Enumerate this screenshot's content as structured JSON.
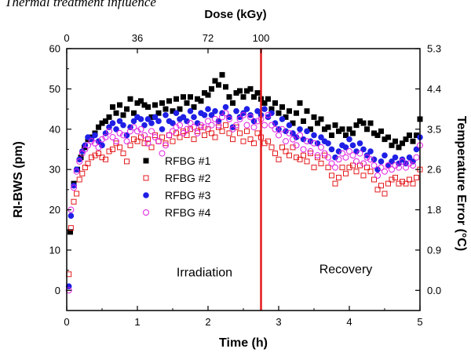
{
  "caption": "Thermal treatment influence",
  "chart_data": {
    "type": "scatter",
    "xlabel": "Time (h)",
    "ylabel": "RI-BWS (pm)",
    "top_xlabel": "Dose (kGy)",
    "right_ylabel": "Temperature Error (°C)",
    "xlim": [
      0,
      5
    ],
    "ylim": [
      -5,
      60
    ],
    "x_ticks": [
      "0",
      "1",
      "2",
      "3",
      "4",
      "5"
    ],
    "y_ticks": [
      "0",
      "10",
      "20",
      "30",
      "40",
      "50",
      "60"
    ],
    "top_ticks": [
      {
        "label": "0",
        "x": 0
      },
      {
        "label": "36",
        "x": 1
      },
      {
        "label": "72",
        "x": 2
      },
      {
        "label": "100",
        "x": 2.75
      }
    ],
    "right_ticks": [
      {
        "label": "0.0",
        "y": 0
      },
      {
        "label": "0.9",
        "y": 10
      },
      {
        "label": "1.8",
        "y": 20
      },
      {
        "label": "2.6",
        "y": 30
      },
      {
        "label": "3.5",
        "y": 40
      },
      {
        "label": "4.4",
        "y": 50
      },
      {
        "label": "5.3",
        "y": 60
      }
    ],
    "vline_x": 2.75,
    "vline_color": "#e31a1c",
    "annotations": [
      {
        "text": "Irradiation",
        "x": 1.95,
        "y": 3.5
      },
      {
        "text": "Recovery",
        "x": 3.95,
        "y": 4.2
      }
    ],
    "legend_position": "center-left",
    "series": [
      {
        "name": "RFBG #1",
        "marker": "square-filled",
        "color": "#000000",
        "x": [
          0.05,
          0.1,
          0.15,
          0.2,
          0.25,
          0.3,
          0.35,
          0.4,
          0.45,
          0.5,
          0.55,
          0.6,
          0.65,
          0.7,
          0.75,
          0.8,
          0.85,
          0.9,
          0.95,
          1.0,
          1.05,
          1.1,
          1.15,
          1.2,
          1.25,
          1.3,
          1.35,
          1.4,
          1.45,
          1.5,
          1.55,
          1.6,
          1.65,
          1.7,
          1.75,
          1.8,
          1.85,
          1.9,
          1.95,
          2.0,
          2.05,
          2.1,
          2.15,
          2.2,
          2.25,
          2.3,
          2.35,
          2.4,
          2.45,
          2.5,
          2.55,
          2.6,
          2.65,
          2.7,
          2.75,
          2.8,
          2.85,
          2.9,
          2.95,
          3.0,
          3.05,
          3.1,
          3.15,
          3.2,
          3.25,
          3.3,
          3.35,
          3.4,
          3.45,
          3.5,
          3.55,
          3.6,
          3.65,
          3.7,
          3.75,
          3.8,
          3.85,
          3.9,
          3.95,
          4.0,
          4.05,
          4.1,
          4.15,
          4.2,
          4.25,
          4.3,
          4.35,
          4.4,
          4.45,
          4.5,
          4.55,
          4.6,
          4.65,
          4.7,
          4.75,
          4.8,
          4.85,
          4.9,
          4.95,
          5.0
        ],
        "y": [
          14.5,
          26.5,
          30.0,
          33.0,
          35.5,
          37.5,
          38.0,
          39.0,
          40.5,
          41.5,
          42.0,
          43.0,
          45.5,
          44.0,
          46.0,
          43.5,
          45.0,
          47.5,
          44.0,
          46.5,
          47.0,
          46.0,
          45.5,
          43.0,
          46.0,
          44.0,
          46.5,
          45.0,
          47.0,
          44.5,
          47.5,
          45.0,
          48.0,
          46.5,
          48.0,
          45.5,
          47.5,
          47.0,
          49.0,
          48.5,
          50.0,
          52.0,
          51.0,
          53.5,
          50.5,
          48.0,
          46.5,
          49.0,
          49.5,
          48.0,
          49.5,
          50.0,
          48.0,
          49.0,
          47.5,
          46.5,
          47.5,
          45.0,
          46.5,
          44.0,
          45.5,
          43.0,
          44.5,
          41.5,
          44.0,
          46.5,
          42.0,
          44.5,
          40.0,
          43.0,
          41.5,
          42.5,
          40.0,
          40.5,
          38.5,
          41.0,
          39.5,
          40.0,
          38.5,
          40.0,
          39.0,
          41.0,
          42.0,
          41.5,
          40.0,
          41.5,
          39.0,
          38.5,
          39.5,
          37.5,
          38.0,
          36.0,
          37.0,
          35.5,
          36.5,
          37.5,
          38.5,
          37.0,
          38.5,
          42.5
        ]
      },
      {
        "name": "RFBG #2",
        "marker": "square-open",
        "color": "#e31a1c",
        "x": [
          0.03,
          0.06,
          0.1,
          0.14,
          0.18,
          0.22,
          0.26,
          0.3,
          0.35,
          0.4,
          0.45,
          0.5,
          0.55,
          0.6,
          0.65,
          0.7,
          0.75,
          0.8,
          0.85,
          0.9,
          0.95,
          1.0,
          1.05,
          1.1,
          1.15,
          1.2,
          1.25,
          1.3,
          1.35,
          1.4,
          1.45,
          1.5,
          1.55,
          1.6,
          1.65,
          1.7,
          1.75,
          1.8,
          1.85,
          1.9,
          1.95,
          2.0,
          2.05,
          2.1,
          2.15,
          2.2,
          2.25,
          2.3,
          2.35,
          2.4,
          2.45,
          2.5,
          2.55,
          2.6,
          2.65,
          2.7,
          2.75,
          2.8,
          2.85,
          2.9,
          2.95,
          3.0,
          3.05,
          3.1,
          3.15,
          3.2,
          3.25,
          3.3,
          3.35,
          3.4,
          3.45,
          3.5,
          3.55,
          3.6,
          3.65,
          3.7,
          3.75,
          3.8,
          3.85,
          3.9,
          3.95,
          4.0,
          4.05,
          4.1,
          4.15,
          4.2,
          4.25,
          4.3,
          4.35,
          4.4,
          4.45,
          4.5,
          4.55,
          4.6,
          4.65,
          4.7,
          4.75,
          4.8,
          4.85,
          4.9,
          4.95,
          5.0
        ],
        "y": [
          4.0,
          15.5,
          22.0,
          24.0,
          27.5,
          29.0,
          30.5,
          31.5,
          33.0,
          33.5,
          34.0,
          33.0,
          32.5,
          34.5,
          35.0,
          36.5,
          35.5,
          34.0,
          32.0,
          36.0,
          37.5,
          37.0,
          38.0,
          36.5,
          37.5,
          35.5,
          38.5,
          37.0,
          38.0,
          36.5,
          38.5,
          37.0,
          39.0,
          38.0,
          39.5,
          38.5,
          40.0,
          37.5,
          39.5,
          40.5,
          38.5,
          40.0,
          39.0,
          38.0,
          40.5,
          39.5,
          41.0,
          39.0,
          37.5,
          40.5,
          39.0,
          37.0,
          39.5,
          37.5,
          36.5,
          39.0,
          38.0,
          36.5,
          37.0,
          35.5,
          34.0,
          32.5,
          35.5,
          34.5,
          33.5,
          35.5,
          33.0,
          32.5,
          33.5,
          32.0,
          34.0,
          30.5,
          33.0,
          31.5,
          33.5,
          30.5,
          28.5,
          26.5,
          28.0,
          30.5,
          29.0,
          30.5,
          31.0,
          29.5,
          31.0,
          28.5,
          30.5,
          29.5,
          27.5,
          25.0,
          26.0,
          24.0,
          26.5,
          27.5,
          28.0,
          26.5,
          27.0,
          26.5,
          27.5,
          26.5,
          28.0,
          30.0
        ]
      },
      {
        "name": "RFBG #3",
        "marker": "circle-filled",
        "color": "#1f1fe6",
        "x": [
          0.03,
          0.06,
          0.1,
          0.14,
          0.18,
          0.22,
          0.26,
          0.3,
          0.35,
          0.4,
          0.45,
          0.5,
          0.55,
          0.6,
          0.65,
          0.7,
          0.75,
          0.8,
          0.85,
          0.9,
          0.95,
          1.0,
          1.05,
          1.1,
          1.15,
          1.2,
          1.25,
          1.3,
          1.35,
          1.4,
          1.45,
          1.5,
          1.55,
          1.6,
          1.65,
          1.7,
          1.75,
          1.8,
          1.85,
          1.9,
          1.95,
          2.0,
          2.05,
          2.1,
          2.15,
          2.2,
          2.25,
          2.3,
          2.35,
          2.4,
          2.45,
          2.5,
          2.55,
          2.6,
          2.65,
          2.7,
          2.75,
          2.8,
          2.85,
          2.9,
          2.95,
          3.0,
          3.05,
          3.1,
          3.15,
          3.2,
          3.25,
          3.3,
          3.35,
          3.4,
          3.45,
          3.5,
          3.55,
          3.6,
          3.65,
          3.7,
          3.75,
          3.8,
          3.85,
          3.9,
          3.95,
          4.0,
          4.05,
          4.1,
          4.15,
          4.2,
          4.25,
          4.3,
          4.35,
          4.4,
          4.45,
          4.5,
          4.55,
          4.6,
          4.65,
          4.7,
          4.75,
          4.8,
          4.85,
          4.9,
          4.95,
          5.0
        ],
        "y": [
          1.0,
          18.5,
          26.0,
          30.0,
          32.5,
          34.5,
          36.0,
          38.0,
          37.5,
          38.5,
          37.0,
          36.0,
          39.0,
          40.5,
          41.5,
          40.0,
          42.0,
          41.0,
          38.5,
          40.5,
          42.0,
          43.0,
          42.5,
          41.0,
          42.5,
          41.5,
          43.0,
          42.0,
          40.0,
          43.5,
          42.0,
          41.5,
          44.0,
          42.5,
          43.0,
          42.0,
          44.5,
          43.0,
          41.5,
          44.0,
          43.5,
          45.0,
          43.5,
          44.5,
          42.0,
          44.0,
          45.5,
          43.0,
          40.5,
          44.5,
          43.0,
          44.0,
          45.0,
          43.5,
          42.0,
          44.5,
          43.5,
          45.0,
          43.0,
          44.0,
          41.5,
          40.0,
          42.5,
          39.5,
          41.0,
          39.0,
          38.0,
          40.0,
          37.5,
          39.5,
          37.0,
          38.5,
          36.5,
          38.0,
          37.0,
          36.5,
          35.0,
          33.0,
          34.5,
          36.0,
          35.5,
          37.5,
          36.0,
          34.5,
          36.5,
          35.0,
          33.5,
          34.5,
          32.5,
          30.0,
          32.0,
          33.5,
          31.0,
          32.0,
          33.0,
          31.5,
          32.5,
          31.5,
          33.0,
          32.0,
          35.0,
          38.0
        ]
      },
      {
        "name": "RFBG #4",
        "marker": "circle-open",
        "color": "#e020e0",
        "x": [
          0.03,
          0.06,
          0.1,
          0.14,
          0.18,
          0.22,
          0.26,
          0.3,
          0.35,
          0.4,
          0.45,
          0.5,
          0.55,
          0.6,
          0.65,
          0.7,
          0.75,
          0.8,
          0.85,
          0.9,
          0.95,
          1.0,
          1.05,
          1.1,
          1.15,
          1.2,
          1.25,
          1.3,
          1.35,
          1.4,
          1.45,
          1.5,
          1.55,
          1.6,
          1.65,
          1.7,
          1.75,
          1.8,
          1.85,
          1.9,
          1.95,
          2.0,
          2.05,
          2.1,
          2.15,
          2.2,
          2.25,
          2.3,
          2.35,
          2.4,
          2.45,
          2.5,
          2.55,
          2.6,
          2.65,
          2.7,
          2.75,
          2.8,
          2.85,
          2.9,
          2.95,
          3.0,
          3.05,
          3.1,
          3.15,
          3.2,
          3.25,
          3.3,
          3.35,
          3.4,
          3.45,
          3.5,
          3.55,
          3.6,
          3.65,
          3.7,
          3.75,
          3.8,
          3.85,
          3.9,
          3.95,
          4.0,
          4.05,
          4.1,
          4.15,
          4.2,
          4.25,
          4.3,
          4.35,
          4.4,
          4.45,
          4.5,
          4.55,
          4.6,
          4.65,
          4.7,
          4.75,
          4.8,
          4.85,
          4.9,
          4.95,
          5.0
        ],
        "y": [
          0.0,
          20.0,
          25.5,
          29.5,
          32.0,
          34.0,
          35.0,
          36.0,
          37.0,
          36.5,
          35.5,
          37.5,
          38.0,
          39.5,
          38.0,
          37.0,
          39.0,
          38.5,
          37.0,
          39.5,
          40.5,
          39.5,
          40.0,
          38.5,
          36.5,
          39.5,
          38.0,
          37.0,
          34.0,
          36.0,
          38.5,
          39.5,
          40.5,
          41.0,
          39.0,
          40.0,
          41.5,
          40.5,
          39.0,
          41.0,
          40.5,
          42.0,
          41.0,
          42.5,
          41.0,
          43.0,
          44.0,
          42.5,
          40.0,
          41.0,
          42.5,
          43.5,
          41.0,
          43.0,
          40.5,
          42.0,
          42.5,
          41.0,
          43.5,
          41.0,
          40.0,
          38.5,
          40.0,
          37.0,
          39.0,
          37.5,
          36.0,
          38.5,
          35.0,
          37.0,
          34.5,
          36.5,
          33.5,
          35.5,
          34.0,
          33.0,
          31.5,
          30.5,
          32.5,
          34.0,
          33.0,
          34.5,
          33.5,
          32.0,
          34.0,
          31.5,
          33.0,
          32.5,
          31.0,
          28.5,
          30.5,
          29.5,
          31.0,
          30.0,
          31.0,
          30.5,
          32.0,
          30.5,
          31.5,
          31.0,
          33.0,
          36.0
        ]
      }
    ]
  }
}
